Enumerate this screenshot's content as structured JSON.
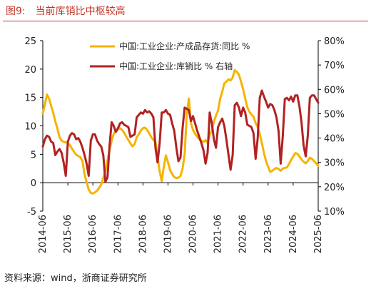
{
  "figure": {
    "label": "图9:",
    "title": "当前库销比中枢较高",
    "source": "资料来源：wind，浙商证券研究所"
  },
  "colors": {
    "title": "#c0392b",
    "inventory_series": "#f5b400",
    "ratio_series": "#b22222",
    "axis": "#000000"
  },
  "chart_data": {
    "type": "line",
    "title": "",
    "xlabel": "",
    "ylabel": "",
    "ylabel_right": "",
    "x_ticks": [
      "2014-06",
      "2015-06",
      "2016-06",
      "2017-06",
      "2018-06",
      "2019-06",
      "2020-06",
      "2021-06",
      "2022-06",
      "2023-06",
      "2024-06",
      "2025-06"
    ],
    "x_range": [
      "2014-06",
      "2025-06"
    ],
    "ylim_left": [
      -5,
      25
    ],
    "y_ticks_left": [
      "-5",
      "0",
      "5",
      "10",
      "15",
      "20",
      "25"
    ],
    "ylim_right": [
      10,
      80
    ],
    "y_ticks_right": [
      "10%",
      "20%",
      "30%",
      "40%",
      "50%",
      "60%",
      "70%",
      "80%"
    ],
    "grid": false,
    "legend_position": "top-right",
    "series": [
      {
        "name": "中国:工业企业:产成品存货:同比 %",
        "axis": "left",
        "color": "#f5b400",
        "points": [
          [
            "2014-06",
            12.2
          ],
          [
            "2014-07",
            13.8
          ],
          [
            "2014-08",
            15.5
          ],
          [
            "2014-09",
            14.8
          ],
          [
            "2014-10",
            13.5
          ],
          [
            "2014-11",
            12.3
          ],
          [
            "2014-12",
            10.8
          ],
          [
            "2015-01",
            9.5
          ],
          [
            "2015-02",
            8.0
          ],
          [
            "2015-03",
            7.4
          ],
          [
            "2015-04",
            7.2
          ],
          [
            "2015-05",
            7.1
          ],
          [
            "2015-06",
            7.0
          ],
          [
            "2015-07",
            6.6
          ],
          [
            "2015-08",
            6.0
          ],
          [
            "2015-09",
            5.4
          ],
          [
            "2015-10",
            4.9
          ],
          [
            "2015-11",
            4.7
          ],
          [
            "2015-12",
            4.5
          ],
          [
            "2016-01",
            3.8
          ],
          [
            "2016-02",
            1.5
          ],
          [
            "2016-03",
            0.1
          ],
          [
            "2016-04",
            -1.2
          ],
          [
            "2016-05",
            -1.8
          ],
          [
            "2016-06",
            -1.9
          ],
          [
            "2016-07",
            -1.7
          ],
          [
            "2016-08",
            -1.4
          ],
          [
            "2016-09",
            -0.9
          ],
          [
            "2016-10",
            -0.3
          ],
          [
            "2016-11",
            0.8
          ],
          [
            "2016-12",
            2.0
          ],
          [
            "2017-01",
            3.9
          ],
          [
            "2017-02",
            5.8
          ],
          [
            "2017-03",
            7.4
          ],
          [
            "2017-04",
            8.6
          ],
          [
            "2017-05",
            9.1
          ],
          [
            "2017-06",
            9.4
          ],
          [
            "2017-07",
            9.6
          ],
          [
            "2017-08",
            9.3
          ],
          [
            "2017-09",
            8.8
          ],
          [
            "2017-10",
            8.1
          ],
          [
            "2017-11",
            7.5
          ],
          [
            "2017-12",
            6.9
          ],
          [
            "2018-01",
            6.4
          ],
          [
            "2018-02",
            6.8
          ],
          [
            "2018-03",
            8.0
          ],
          [
            "2018-04",
            8.5
          ],
          [
            "2018-05",
            9.2
          ],
          [
            "2018-06",
            9.6
          ],
          [
            "2018-07",
            9.7
          ],
          [
            "2018-08",
            9.3
          ],
          [
            "2018-09",
            8.7
          ],
          [
            "2018-10",
            8.0
          ],
          [
            "2018-11",
            7.5
          ],
          [
            "2018-12",
            7.2
          ],
          [
            "2019-01",
            4.5
          ],
          [
            "2019-02",
            2.0
          ],
          [
            "2019-03",
            0.3
          ],
          [
            "2019-04",
            2.8
          ],
          [
            "2019-05",
            4.8
          ],
          [
            "2019-06",
            3.6
          ],
          [
            "2019-07",
            2.2
          ],
          [
            "2019-08",
            1.5
          ],
          [
            "2019-09",
            1.0
          ],
          [
            "2019-10",
            0.8
          ],
          [
            "2019-11",
            0.9
          ],
          [
            "2019-12",
            1.2
          ],
          [
            "2020-01",
            2.5
          ],
          [
            "2020-02",
            5.0
          ],
          [
            "2020-03",
            12.2
          ],
          [
            "2020-04",
            14.8
          ],
          [
            "2020-05",
            10.5
          ],
          [
            "2020-06",
            9.3
          ],
          [
            "2020-07",
            8.6
          ],
          [
            "2020-08",
            8.1
          ],
          [
            "2020-09",
            7.6
          ],
          [
            "2020-10",
            7.4
          ],
          [
            "2020-11",
            7.2
          ],
          [
            "2020-12",
            7.5
          ],
          [
            "2021-01",
            7.0
          ],
          [
            "2021-02",
            8.4
          ],
          [
            "2021-03",
            9.2
          ],
          [
            "2021-04",
            10.8
          ],
          [
            "2021-05",
            11.8
          ],
          [
            "2021-06",
            12.7
          ],
          [
            "2021-07",
            14.8
          ],
          [
            "2021-08",
            16.0
          ],
          [
            "2021-09",
            17.5
          ],
          [
            "2021-10",
            17.8
          ],
          [
            "2021-11",
            18.2
          ],
          [
            "2021-12",
            18.0
          ],
          [
            "2022-01",
            18.5
          ],
          [
            "2022-02",
            19.8
          ],
          [
            "2022-03",
            19.5
          ],
          [
            "2022-04",
            19.0
          ],
          [
            "2022-05",
            17.8
          ],
          [
            "2022-06",
            16.5
          ],
          [
            "2022-07",
            14.8
          ],
          [
            "2022-08",
            13.3
          ],
          [
            "2022-09",
            12.5
          ],
          [
            "2022-10",
            12.0
          ],
          [
            "2022-11",
            11.6
          ],
          [
            "2022-12",
            10.5
          ],
          [
            "2023-01",
            9.8
          ],
          [
            "2023-02",
            8.6
          ],
          [
            "2023-03",
            7.0
          ],
          [
            "2023-04",
            5.2
          ],
          [
            "2023-05",
            3.8
          ],
          [
            "2023-06",
            2.8
          ],
          [
            "2023-07",
            1.9
          ],
          [
            "2023-08",
            2.1
          ],
          [
            "2023-09",
            2.4
          ],
          [
            "2023-10",
            2.6
          ],
          [
            "2023-11",
            2.4
          ],
          [
            "2023-12",
            2.1
          ],
          [
            "2024-01",
            2.5
          ],
          [
            "2024-02",
            2.6
          ],
          [
            "2024-03",
            2.7
          ],
          [
            "2024-04",
            3.3
          ],
          [
            "2024-05",
            4.0
          ],
          [
            "2024-06",
            4.6
          ],
          [
            "2024-07",
            5.2
          ],
          [
            "2024-08",
            5.1
          ],
          [
            "2024-09",
            4.6
          ],
          [
            "2024-10",
            4.1
          ],
          [
            "2024-11",
            3.7
          ],
          [
            "2024-12",
            3.4
          ],
          [
            "2025-01",
            3.8
          ],
          [
            "2025-02",
            4.4
          ],
          [
            "2025-03",
            4.2
          ],
          [
            "2025-04",
            3.8
          ],
          [
            "2025-05",
            3.4
          ],
          [
            "2025-06",
            3.0
          ]
        ]
      },
      {
        "name": "中国:工业企业:库销比 % 右轴",
        "axis": "right",
        "color": "#b22222",
        "points": [
          [
            "2014-06",
            36.5
          ],
          [
            "2014-07",
            39.5
          ],
          [
            "2014-08",
            41.0
          ],
          [
            "2014-09",
            40.5
          ],
          [
            "2014-10",
            38.5
          ],
          [
            "2014-11",
            38.0
          ],
          [
            "2014-12",
            33.0
          ],
          [
            "2015-01",
            34.5
          ],
          [
            "2015-02",
            35.5
          ],
          [
            "2015-03",
            34.0
          ],
          [
            "2015-04",
            30.0
          ],
          [
            "2015-05",
            24.5
          ],
          [
            "2015-06",
            38.5
          ],
          [
            "2015-07",
            41.0
          ],
          [
            "2015-08",
            42.0
          ],
          [
            "2015-09",
            41.5
          ],
          [
            "2015-10",
            39.5
          ],
          [
            "2015-11",
            40.0
          ],
          [
            "2015-12",
            38.5
          ],
          [
            "2016-01",
            36.0
          ],
          [
            "2016-02",
            33.0
          ],
          [
            "2016-03",
            29.5
          ],
          [
            "2016-04",
            24.5
          ],
          [
            "2016-05",
            39.0
          ],
          [
            "2016-06",
            41.5
          ],
          [
            "2016-07",
            41.5
          ],
          [
            "2016-08",
            39.0
          ],
          [
            "2016-09",
            37.5
          ],
          [
            "2016-10",
            36.5
          ],
          [
            "2016-11",
            33.0
          ],
          [
            "2016-12",
            22.0
          ],
          [
            "2017-01",
            24.0
          ],
          [
            "2017-02",
            37.0
          ],
          [
            "2017-03",
            46.5
          ],
          [
            "2017-04",
            45.0
          ],
          [
            "2017-05",
            42.5
          ],
          [
            "2017-06",
            44.0
          ],
          [
            "2017-07",
            46.0
          ],
          [
            "2017-08",
            46.5
          ],
          [
            "2017-09",
            45.5
          ],
          [
            "2017-10",
            45.0
          ],
          [
            "2017-11",
            44.5
          ],
          [
            "2017-12",
            40.5
          ],
          [
            "2018-01",
            41.0
          ],
          [
            "2018-02",
            41.5
          ],
          [
            "2018-03",
            48.5
          ],
          [
            "2018-04",
            49.5
          ],
          [
            "2018-05",
            50.5
          ],
          [
            "2018-06",
            50.0
          ],
          [
            "2018-07",
            51.5
          ],
          [
            "2018-08",
            50.5
          ],
          [
            "2018-09",
            51.0
          ],
          [
            "2018-10",
            50.0
          ],
          [
            "2018-11",
            48.5
          ],
          [
            "2018-12",
            36.0
          ],
          [
            "2019-01",
            30.0
          ],
          [
            "2019-02",
            38.0
          ],
          [
            "2019-03",
            50.5
          ],
          [
            "2019-04",
            50.5
          ],
          [
            "2019-05",
            51.5
          ],
          [
            "2019-06",
            50.0
          ],
          [
            "2019-07",
            49.5
          ],
          [
            "2019-08",
            46.0
          ],
          [
            "2019-09",
            43.0
          ],
          [
            "2019-10",
            36.0
          ],
          [
            "2019-11",
            30.5
          ],
          [
            "2019-12",
            32.0
          ],
          [
            "2020-01",
            44.0
          ],
          [
            "2020-02",
            52.5
          ],
          [
            "2020-03",
            52.0
          ],
          [
            "2020-04",
            51.5
          ],
          [
            "2020-05",
            47.0
          ],
          [
            "2020-06",
            49.0
          ],
          [
            "2020-07",
            46.0
          ],
          [
            "2020-08",
            43.0
          ],
          [
            "2020-09",
            40.5
          ],
          [
            "2020-10",
            38.0
          ],
          [
            "2020-11",
            35.0
          ],
          [
            "2020-12",
            29.5
          ],
          [
            "2021-01",
            34.0
          ],
          [
            "2021-02",
            50.5
          ],
          [
            "2021-03",
            46.0
          ],
          [
            "2021-04",
            39.5
          ],
          [
            "2021-05",
            36.0
          ],
          [
            "2021-06",
            44.5
          ],
          [
            "2021-07",
            46.5
          ],
          [
            "2021-08",
            48.0
          ],
          [
            "2021-09",
            45.0
          ],
          [
            "2021-10",
            39.5
          ],
          [
            "2021-11",
            33.0
          ],
          [
            "2021-12",
            27.0
          ],
          [
            "2022-01",
            33.0
          ],
          [
            "2022-02",
            53.5
          ],
          [
            "2022-03",
            54.5
          ],
          [
            "2022-04",
            52.5
          ],
          [
            "2022-05",
            49.0
          ],
          [
            "2022-06",
            52.5
          ],
          [
            "2022-07",
            50.5
          ],
          [
            "2022-08",
            45.5
          ],
          [
            "2022-09",
            45.0
          ],
          [
            "2022-10",
            44.5
          ],
          [
            "2022-11",
            42.0
          ],
          [
            "2022-12",
            31.5
          ],
          [
            "2023-01",
            40.0
          ],
          [
            "2023-02",
            56.5
          ],
          [
            "2023-03",
            59.5
          ],
          [
            "2023-04",
            57.0
          ],
          [
            "2023-05",
            55.0
          ],
          [
            "2023-06",
            52.5
          ],
          [
            "2023-07",
            54.0
          ],
          [
            "2023-08",
            53.5
          ],
          [
            "2023-09",
            51.5
          ],
          [
            "2023-10",
            48.5
          ],
          [
            "2023-11",
            43.0
          ],
          [
            "2023-12",
            29.5
          ],
          [
            "2024-01",
            40.5
          ],
          [
            "2024-02",
            56.0
          ],
          [
            "2024-03",
            56.5
          ],
          [
            "2024-04",
            55.5
          ],
          [
            "2024-05",
            57.0
          ],
          [
            "2024-06",
            55.0
          ],
          [
            "2024-07",
            57.5
          ],
          [
            "2024-08",
            57.5
          ],
          [
            "2024-09",
            53.0
          ],
          [
            "2024-10",
            46.5
          ],
          [
            "2024-11",
            37.0
          ],
          [
            "2024-12",
            32.5
          ],
          [
            "2025-01",
            41.0
          ],
          [
            "2025-02",
            56.5
          ],
          [
            "2025-03",
            57.5
          ],
          [
            "2025-04",
            57.5
          ],
          [
            "2025-05",
            56.0
          ],
          [
            "2025-06",
            54.5
          ]
        ]
      }
    ]
  }
}
